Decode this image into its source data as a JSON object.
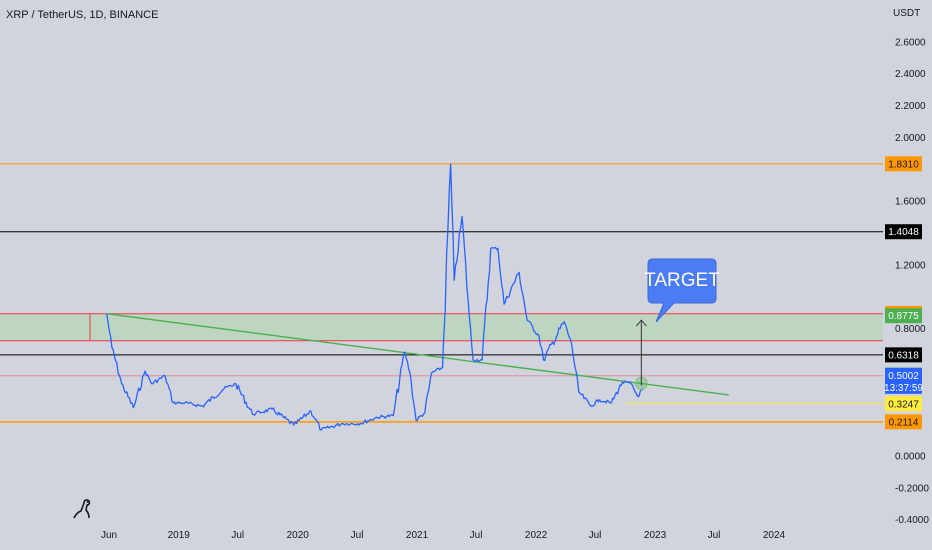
{
  "header": {
    "symbol": "XRP / TetherUS, 1D, BINANCE"
  },
  "colors": {
    "background": "#d1d4dc",
    "price_line": "#2962ff",
    "trendline": "#4caf50",
    "resistance_zone": "#b7d7b8",
    "orange_level": "#ff9800",
    "red_level": "#f23645",
    "black_level": "#000000",
    "yellow_level": "#ffeb3b",
    "callout": "#4c7cf3"
  },
  "chart_data": {
    "type": "line",
    "title": "XRP / TetherUS, 1D, BINANCE",
    "unit": "USDT",
    "xlabel": "",
    "ylabel": "",
    "ylim": [
      -0.4,
      2.8
    ],
    "grid": false,
    "x_ticks": [
      "Jun",
      "2019",
      "Jul",
      "2020",
      "Jul",
      "2021",
      "Jul",
      "2022",
      "Jul",
      "2023",
      "Jul",
      "2024"
    ],
    "y_ticks": [
      "2.6000",
      "2.4000",
      "2.2000",
      "2.0000",
      "1.6000",
      "1.2000",
      "0.8000",
      "0.0000",
      "-0.2000",
      "-0.4000"
    ],
    "series": [
      {
        "x": [
          "2018-05-25",
          "2018-06-10",
          "2018-07-10",
          "2018-08-15",
          "2018-09-20",
          "2018-10-10",
          "2018-11-20",
          "2018-12-15",
          "2019-01-20",
          "2019-03-15",
          "2019-05-20",
          "2019-06-25",
          "2019-08-15",
          "2019-10-15",
          "2019-12-20",
          "2020-02-10",
          "2020-03-13",
          "2020-05-15",
          "2020-07-10",
          "2020-09-01",
          "2020-10-20",
          "2020-11-24",
          "2020-12-10",
          "2020-12-29",
          "2021-01-25",
          "2021-02-15",
          "2021-03-20",
          "2021-04-14",
          "2021-04-25",
          "2021-05-19",
          "2021-06-10",
          "2021-06-22",
          "2021-07-20",
          "2021-08-15",
          "2021-09-06",
          "2021-09-25",
          "2021-11-10",
          "2021-12-05",
          "2022-01-10",
          "2022-01-24",
          "2022-03-28",
          "2022-04-20",
          "2022-05-12",
          "2022-06-18",
          "2022-07-15",
          "2022-08-20",
          "2022-09-23",
          "2022-10-20",
          "2022-11-09",
          "2022-11-25"
        ],
        "values": [
          0.89,
          0.68,
          0.45,
          0.3,
          0.53,
          0.45,
          0.5,
          0.33,
          0.33,
          0.31,
          0.42,
          0.45,
          0.26,
          0.29,
          0.19,
          0.28,
          0.16,
          0.2,
          0.2,
          0.24,
          0.25,
          0.65,
          0.52,
          0.22,
          0.27,
          0.52,
          0.55,
          1.83,
          1.1,
          1.5,
          0.88,
          0.6,
          0.6,
          1.3,
          1.3,
          0.95,
          1.15,
          0.85,
          0.75,
          0.6,
          0.84,
          0.7,
          0.4,
          0.31,
          0.35,
          0.33,
          0.46,
          0.45,
          0.37,
          0.42
        ]
      }
    ],
    "trendline": {
      "x": [
        "2018-05-25",
        "2023-08-15"
      ],
      "values": [
        0.89,
        0.38
      ]
    },
    "horizontal_levels": [
      {
        "value": 1.831,
        "label": "1.8310",
        "color": "#ff9800"
      },
      {
        "value": 1.4048,
        "label": "1.4048",
        "color": "#000000"
      },
      {
        "value": 0.8916,
        "label": "0.8916",
        "color": "#ff9800"
      },
      {
        "value": 0.8775,
        "label": "0.8775",
        "color": "#4caf50"
      },
      {
        "value": 0.6318,
        "label": "0.6318",
        "color": "#000000"
      },
      {
        "value": 0.5043,
        "label": "0.5043",
        "color": "#4caf50"
      },
      {
        "value": 0.5002,
        "label": "0.5002",
        "color": "#2962ff",
        "sub": "13:37:59"
      },
      {
        "value": 0.3247,
        "label": "0.3247",
        "color": "#ffeb3b"
      },
      {
        "value": 0.2114,
        "label": "0.2114",
        "color": "#ff9800"
      }
    ],
    "resistance_zone": [
      0.72,
      0.89
    ],
    "annotation": {
      "text": "TARGET",
      "arrow_from_date": "2022-11-20",
      "arrow_from": 0.44,
      "arrow_to": 0.85
    }
  }
}
